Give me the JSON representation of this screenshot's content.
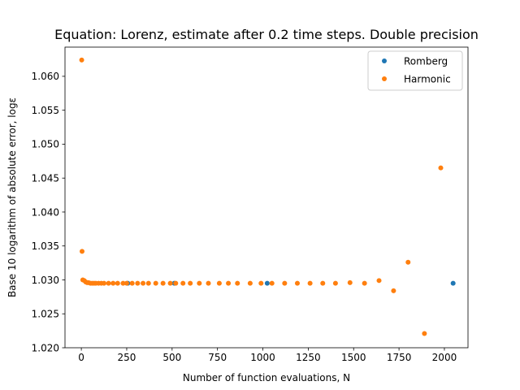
{
  "chart_data": {
    "type": "scatter",
    "title": "Equation: Lorenz, estimate after 0.2 time steps. Double precision",
    "xlabel": "Number of function evaluations, N",
    "ylabel": "Base 10 logarithm of absolute error, logε",
    "xlim": [
      -90,
      2130
    ],
    "ylim": [
      1.02,
      1.0643
    ],
    "xticks": [
      0,
      250,
      500,
      750,
      1000,
      1250,
      1500,
      1750,
      2000
    ],
    "xtick_labels": [
      "0",
      "250",
      "500",
      "750",
      "1000",
      "1250",
      "1500",
      "1750",
      "2000"
    ],
    "yticks": [
      1.02,
      1.025,
      1.03,
      1.035,
      1.04,
      1.045,
      1.05,
      1.055,
      1.06
    ],
    "ytick_labels": [
      "1.020",
      "1.025",
      "1.030",
      "1.035",
      "1.040",
      "1.045",
      "1.050",
      "1.055",
      "1.060"
    ],
    "grid": false,
    "legend_position": "top-right",
    "series": [
      {
        "name": "Romberg",
        "color": "#1f77b4",
        "points": [
          [
            256,
            1.0295
          ],
          [
            512,
            1.0295
          ],
          [
            1024,
            1.0295
          ],
          [
            2048,
            1.0295
          ]
        ]
      },
      {
        "name": "Harmonic",
        "color": "#ff7f0e",
        "points": [
          [
            2,
            1.0624
          ],
          [
            4,
            1.0342
          ],
          [
            8,
            1.03
          ],
          [
            16,
            1.0299
          ],
          [
            24,
            1.0297
          ],
          [
            32,
            1.0296
          ],
          [
            40,
            1.0296
          ],
          [
            50,
            1.0295
          ],
          [
            60,
            1.0295
          ],
          [
            70,
            1.0295
          ],
          [
            80,
            1.0295
          ],
          [
            95,
            1.0295
          ],
          [
            110,
            1.0295
          ],
          [
            125,
            1.0295
          ],
          [
            150,
            1.0295
          ],
          [
            175,
            1.0295
          ],
          [
            200,
            1.0295
          ],
          [
            230,
            1.0295
          ],
          [
            250,
            1.0295
          ],
          [
            280,
            1.0295
          ],
          [
            310,
            1.0295
          ],
          [
            340,
            1.0295
          ],
          [
            370,
            1.0295
          ],
          [
            410,
            1.0295
          ],
          [
            450,
            1.0295
          ],
          [
            490,
            1.0295
          ],
          [
            520,
            1.0295
          ],
          [
            560,
            1.0295
          ],
          [
            600,
            1.0295
          ],
          [
            650,
            1.0295
          ],
          [
            700,
            1.0295
          ],
          [
            760,
            1.0295
          ],
          [
            810,
            1.0295
          ],
          [
            860,
            1.0295
          ],
          [
            930,
            1.0295
          ],
          [
            990,
            1.0295
          ],
          [
            1050,
            1.0295
          ],
          [
            1120,
            1.0295
          ],
          [
            1190,
            1.0295
          ],
          [
            1260,
            1.0295
          ],
          [
            1330,
            1.0295
          ],
          [
            1400,
            1.0295
          ],
          [
            1480,
            1.0296
          ],
          [
            1560,
            1.0295
          ],
          [
            1640,
            1.0299
          ],
          [
            1720,
            1.0284
          ],
          [
            1800,
            1.0326
          ],
          [
            1890,
            1.0221
          ],
          [
            1980,
            1.0465
          ]
        ]
      }
    ]
  }
}
